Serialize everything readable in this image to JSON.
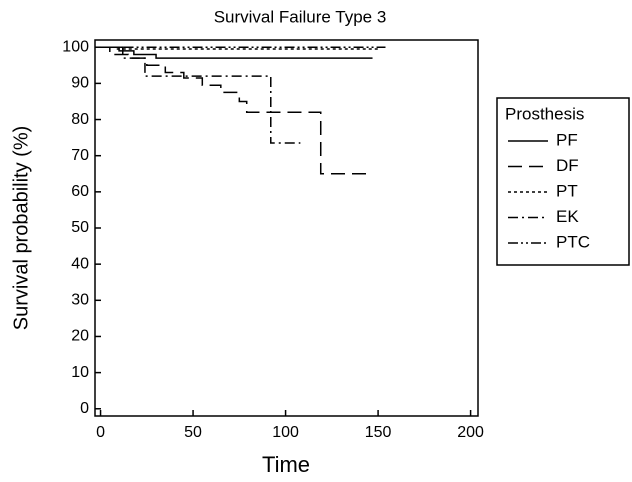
{
  "chart_data": {
    "type": "line",
    "step": true,
    "title": "Survival Failure Type 3",
    "xlabel": "Time",
    "ylabel": "Survival probability (%)",
    "xlim": [
      -3,
      204
    ],
    "ylim": [
      -2,
      102
    ],
    "xticks": [
      0,
      50,
      100,
      150,
      200
    ],
    "yticks": [
      0,
      10,
      20,
      30,
      40,
      50,
      60,
      70,
      80,
      90,
      100
    ],
    "legend_title": "Prosthesis",
    "legend": "outside right",
    "series": [
      {
        "name": "PF",
        "color": "#000000",
        "style": "solid",
        "x": [
          0,
          10,
          18,
          30,
          147
        ],
        "values": [
          100,
          99,
          98,
          97,
          97
        ]
      },
      {
        "name": "DF",
        "color": "#000000",
        "style": "dashed",
        "x": [
          0,
          5,
          15,
          25,
          35,
          45,
          55,
          65,
          75,
          79,
          119,
          147
        ],
        "values": [
          100,
          98,
          97,
          95,
          93,
          91.5,
          89.5,
          87.5,
          85,
          82,
          65,
          65
        ]
      },
      {
        "name": "PT",
        "color": "#000000",
        "style": "dotted",
        "x": [
          0,
          8,
          150
        ],
        "values": [
          100,
          99.5,
          99.5
        ]
      },
      {
        "name": "EK",
        "color": "#000000",
        "style": "dashdot",
        "x": [
          0,
          12,
          24,
          92,
          108
        ],
        "values": [
          100,
          97,
          92,
          73.5,
          73.5
        ]
      },
      {
        "name": "PTC",
        "color": "#000000",
        "style": "dashdotdot",
        "x": [
          0,
          154
        ],
        "values": [
          100,
          100
        ]
      }
    ]
  }
}
